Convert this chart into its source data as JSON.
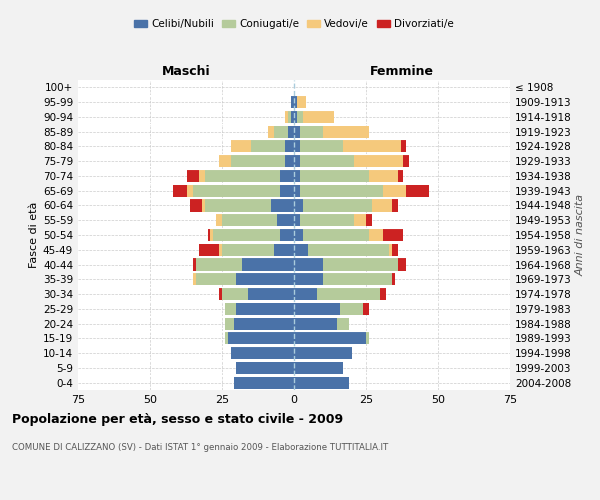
{
  "age_groups": [
    "0-4",
    "5-9",
    "10-14",
    "15-19",
    "20-24",
    "25-29",
    "30-34",
    "35-39",
    "40-44",
    "45-49",
    "50-54",
    "55-59",
    "60-64",
    "65-69",
    "70-74",
    "75-79",
    "80-84",
    "85-89",
    "90-94",
    "95-99",
    "100+"
  ],
  "birth_years": [
    "2004-2008",
    "1999-2003",
    "1994-1998",
    "1989-1993",
    "1984-1988",
    "1979-1983",
    "1974-1978",
    "1969-1973",
    "1964-1968",
    "1959-1963",
    "1954-1958",
    "1949-1953",
    "1944-1948",
    "1939-1943",
    "1934-1938",
    "1929-1933",
    "1924-1928",
    "1919-1923",
    "1914-1918",
    "1909-1913",
    "≤ 1908"
  ],
  "male": {
    "celibi": [
      21,
      20,
      22,
      23,
      21,
      20,
      16,
      20,
      18,
      7,
      5,
      6,
      8,
      5,
      5,
      3,
      3,
      2,
      1,
      1,
      0
    ],
    "coniugati": [
      0,
      0,
      0,
      1,
      3,
      4,
      9,
      14,
      16,
      18,
      23,
      19,
      23,
      30,
      26,
      19,
      12,
      5,
      1,
      0,
      0
    ],
    "vedovi": [
      0,
      0,
      0,
      0,
      0,
      0,
      0,
      1,
      0,
      1,
      1,
      2,
      1,
      2,
      2,
      4,
      7,
      2,
      1,
      0,
      0
    ],
    "divorziati": [
      0,
      0,
      0,
      0,
      0,
      0,
      1,
      0,
      1,
      7,
      1,
      0,
      4,
      5,
      4,
      0,
      0,
      0,
      0,
      0,
      0
    ]
  },
  "female": {
    "nubili": [
      19,
      17,
      20,
      25,
      15,
      16,
      8,
      10,
      10,
      5,
      3,
      2,
      3,
      2,
      2,
      2,
      2,
      2,
      1,
      1,
      0
    ],
    "coniugate": [
      0,
      0,
      0,
      1,
      4,
      8,
      22,
      24,
      26,
      28,
      23,
      19,
      24,
      29,
      24,
      19,
      15,
      8,
      2,
      0,
      0
    ],
    "vedove": [
      0,
      0,
      0,
      0,
      0,
      0,
      0,
      0,
      0,
      1,
      5,
      4,
      7,
      8,
      10,
      17,
      20,
      16,
      11,
      3,
      0
    ],
    "divorziate": [
      0,
      0,
      0,
      0,
      0,
      2,
      2,
      1,
      3,
      2,
      7,
      2,
      2,
      8,
      2,
      2,
      2,
      0,
      0,
      0,
      0
    ]
  },
  "colors": {
    "celibi_nubili": "#4a72a8",
    "coniugati": "#b5cb9b",
    "vedovi": "#f5c97c",
    "divorziati": "#cc2222"
  },
  "xlim": 75,
  "title": "Popolazione per età, sesso e stato civile - 2009",
  "subtitle": "COMUNE DI CALIZZANO (SV) - Dati ISTAT 1° gennaio 2009 - Elaborazione TUTTITALIA.IT",
  "xlabel_left": "Maschi",
  "xlabel_right": "Femmine",
  "ylabel_left": "Fasce di età",
  "ylabel_right": "Anni di nascita",
  "legend_labels": [
    "Celibi/Nubili",
    "Coniugati/e",
    "Vedovi/e",
    "Divorziati/e"
  ],
  "bg_color": "#f2f2f2",
  "plot_bg_color": "#ffffff"
}
